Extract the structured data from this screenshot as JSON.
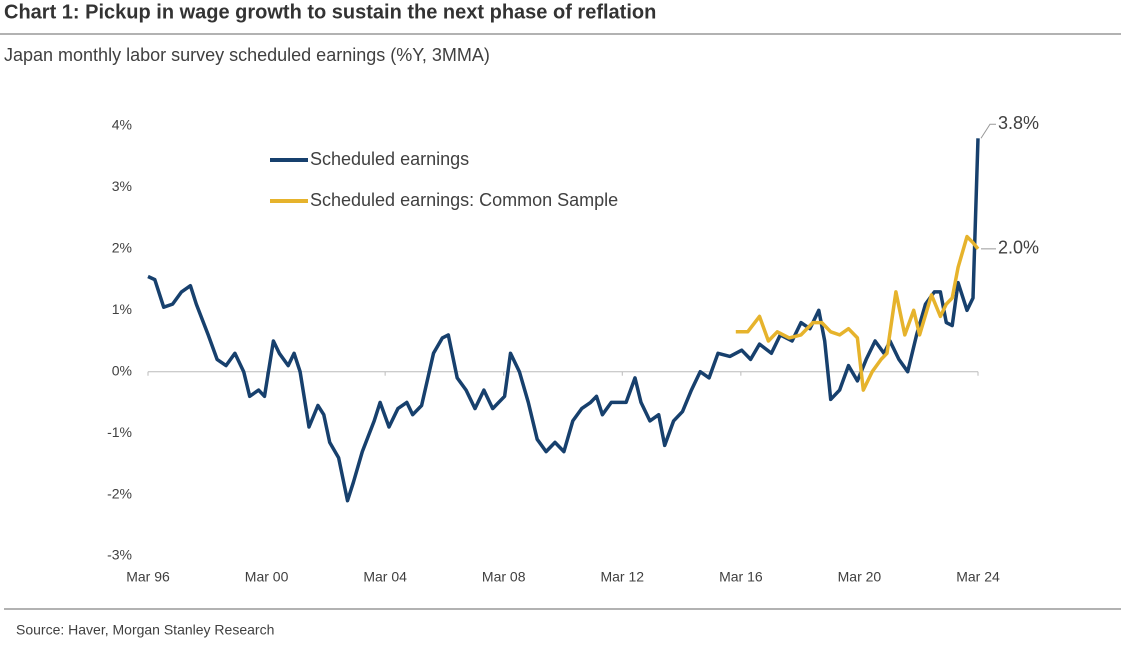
{
  "chart_data": {
    "type": "line",
    "title": "Chart 1: Pickup in wage growth to sustain the next phase of reflation",
    "subtitle": "Japan monthly labor survey scheduled earnings (%Y, 3MMA)",
    "source": "Source: Haver, Morgan Stanley Research",
    "legend": "upper left",
    "xlim": [
      1996.17,
      2024.17
    ],
    "xticks": [
      {
        "value": 1996.17,
        "label": "Mar 96"
      },
      {
        "value": 2000.17,
        "label": "Mar 00"
      },
      {
        "value": 2004.17,
        "label": "Mar 04"
      },
      {
        "value": 2008.17,
        "label": "Mar 08"
      },
      {
        "value": 2012.17,
        "label": "Mar 12"
      },
      {
        "value": 2016.17,
        "label": "Mar 16"
      },
      {
        "value": 2020.17,
        "label": "Mar 20"
      },
      {
        "value": 2024.17,
        "label": "Mar 24"
      }
    ],
    "ylim": [
      -3,
      4
    ],
    "yticks": [
      {
        "value": -3,
        "label": "-3%"
      },
      {
        "value": -2,
        "label": "-2%"
      },
      {
        "value": -1,
        "label": "-1%"
      },
      {
        "value": 0,
        "label": "0%"
      },
      {
        "value": 1,
        "label": "1%"
      },
      {
        "value": 2,
        "label": "2%"
      },
      {
        "value": 3,
        "label": "3%"
      },
      {
        "value": 4,
        "label": "4%"
      }
    ],
    "series": [
      {
        "name": "Scheduled earnings",
        "color": "#17406d",
        "x": [
          1996.17,
          1996.4,
          1996.7,
          1997.0,
          1997.3,
          1997.6,
          1997.8,
          1998.2,
          1998.5,
          1998.8,
          1999.1,
          1999.4,
          1999.6,
          1999.9,
          2000.1,
          2000.4,
          2000.6,
          2000.9,
          2001.1,
          2001.3,
          2001.6,
          2001.9,
          2002.1,
          2002.3,
          2002.6,
          2002.9,
          2003.1,
          2003.4,
          2003.8,
          2004.0,
          2004.3,
          2004.6,
          2004.9,
          2005.1,
          2005.4,
          2005.8,
          2006.1,
          2006.3,
          2006.6,
          2006.9,
          2007.2,
          2007.5,
          2007.8,
          2008.2,
          2008.4,
          2008.7,
          2009.0,
          2009.3,
          2009.6,
          2009.9,
          2010.2,
          2010.5,
          2010.8,
          2011.1,
          2011.3,
          2011.5,
          2011.8,
          2012.3,
          2012.6,
          2012.8,
          2013.1,
          2013.4,
          2013.6,
          2013.9,
          2014.2,
          2014.5,
          2014.8,
          2015.1,
          2015.4,
          2015.8,
          2016.2,
          2016.5,
          2016.8,
          2017.2,
          2017.5,
          2017.9,
          2018.2,
          2018.5,
          2018.8,
          2019.0,
          2019.2,
          2019.5,
          2019.8,
          2020.1,
          2020.4,
          2020.7,
          2021.0,
          2021.2,
          2021.5,
          2021.8,
          2022.1,
          2022.4,
          2022.7,
          2022.9,
          2023.1,
          2023.3,
          2023.5,
          2023.8,
          2024.0,
          2024.17
        ],
        "values": [
          1.55,
          1.5,
          1.05,
          1.1,
          1.3,
          1.4,
          1.1,
          0.6,
          0.2,
          0.1,
          0.3,
          0.0,
          -0.4,
          -0.3,
          -0.4,
          0.5,
          0.3,
          0.1,
          0.3,
          0.0,
          -0.9,
          -0.55,
          -0.7,
          -1.15,
          -1.4,
          -2.1,
          -1.8,
          -1.3,
          -0.8,
          -0.5,
          -0.9,
          -0.6,
          -0.5,
          -0.7,
          -0.55,
          0.3,
          0.55,
          0.6,
          -0.1,
          -0.3,
          -0.6,
          -0.3,
          -0.6,
          -0.4,
          0.3,
          0.0,
          -0.5,
          -1.1,
          -1.3,
          -1.15,
          -1.3,
          -0.8,
          -0.6,
          -0.5,
          -0.4,
          -0.7,
          -0.5,
          -0.5,
          -0.1,
          -0.5,
          -0.8,
          -0.7,
          -1.2,
          -0.8,
          -0.65,
          -0.3,
          0.0,
          -0.1,
          0.3,
          0.25,
          0.35,
          0.2,
          0.45,
          0.3,
          0.6,
          0.5,
          0.8,
          0.7,
          1.0,
          0.5,
          -0.45,
          -0.3,
          0.1,
          -0.15,
          0.2,
          0.5,
          0.3,
          0.5,
          0.2,
          0.0,
          0.6,
          1.1,
          1.3,
          1.3,
          0.8,
          0.75,
          1.45,
          1.0,
          1.2,
          3.8
        ],
        "value_labels": [
          null,
          null,
          null,
          null,
          null,
          null,
          null,
          null,
          null,
          null,
          null,
          null,
          null,
          null,
          null,
          null,
          null,
          null,
          null,
          null,
          null,
          null,
          null,
          null,
          null,
          null,
          null,
          null,
          null,
          null,
          null,
          null,
          null,
          null,
          null,
          null,
          null,
          null,
          null,
          null,
          null,
          null,
          null,
          null,
          null,
          null,
          null,
          null,
          null,
          null,
          null,
          null,
          null,
          null,
          null,
          null,
          null,
          null,
          null,
          null,
          null,
          null,
          null,
          null,
          null,
          null,
          null,
          null,
          null,
          null,
          null,
          null,
          null,
          null,
          null,
          null,
          null,
          null,
          null,
          null,
          null,
          null,
          null,
          null,
          null,
          null,
          null,
          null,
          null,
          null,
          null,
          null,
          null,
          null,
          null,
          null,
          null,
          null,
          null,
          "3.8%"
        ]
      },
      {
        "name": "Scheduled earnings: Common Sample",
        "color": "#e6b32c",
        "x": [
          2016.0,
          2016.4,
          2016.8,
          2017.1,
          2017.4,
          2017.8,
          2018.2,
          2018.6,
          2018.9,
          2019.2,
          2019.5,
          2019.8,
          2020.1,
          2020.3,
          2020.6,
          2020.9,
          2021.1,
          2021.4,
          2021.7,
          2022.0,
          2022.2,
          2022.6,
          2022.9,
          2023.1,
          2023.3,
          2023.5,
          2023.8,
          2024.0,
          2024.17
        ],
        "values": [
          0.65,
          0.65,
          0.9,
          0.5,
          0.65,
          0.55,
          0.6,
          0.8,
          0.8,
          0.65,
          0.6,
          0.7,
          0.55,
          -0.3,
          0.0,
          0.2,
          0.3,
          1.3,
          0.6,
          1.0,
          0.6,
          1.25,
          0.9,
          1.1,
          1.2,
          1.7,
          2.2,
          2.1,
          2.0
        ],
        "value_labels": [
          null,
          null,
          null,
          null,
          null,
          null,
          null,
          null,
          null,
          null,
          null,
          null,
          null,
          null,
          null,
          null,
          null,
          null,
          null,
          null,
          null,
          null,
          null,
          null,
          null,
          null,
          null,
          null,
          "2.0%"
        ]
      }
    ]
  }
}
